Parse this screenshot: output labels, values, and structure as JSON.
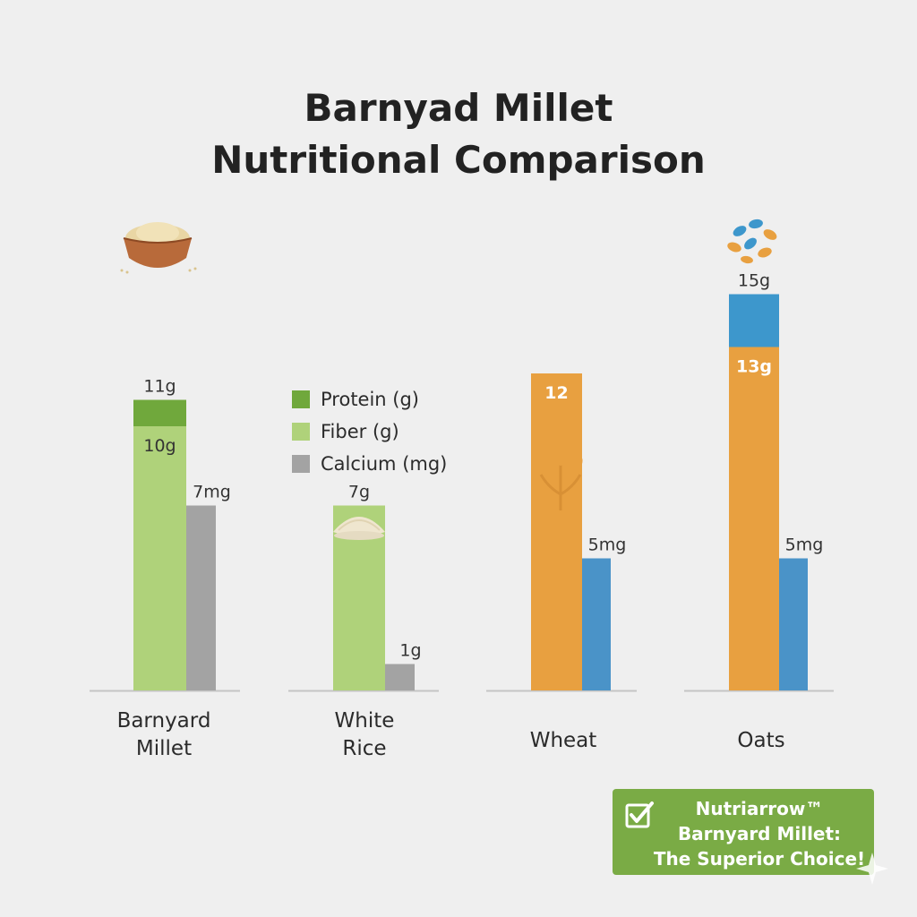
{
  "title_lines": [
    "Barnyad Millet",
    "Nutritional Comparison"
  ],
  "legend": [
    {
      "label": "Protein (g)",
      "color": "#70a83c"
    },
    {
      "label": "Fiber (g)",
      "color": "#afd27a"
    },
    {
      "label": "Calcium (mg)",
      "color": "#a3a3a3"
    }
  ],
  "cta": {
    "line1": "Nutriarrow™",
    "line2": "Barnyard Millet:",
    "line3": "The Superior Choice!",
    "color": "#7aab45"
  },
  "chart_data": {
    "type": "bar",
    "title": "Barnyad Millet Nutritional Comparison",
    "categories": [
      "Barnyard Millet",
      "White Rice",
      "Wheat",
      "Oats"
    ],
    "groups": [
      {
        "category_lines": [
          "Barnyard",
          "Millet"
        ],
        "icon": "grain-bowl-icon",
        "bars": [
          {
            "segments": [
              {
                "series": "Fiber (g)",
                "value": 10,
                "color": "#afd27a",
                "label": "10g"
              },
              {
                "series": "Protein (g)",
                "value": 11,
                "color": "#70a83c",
                "label": "11g"
              }
            ]
          },
          {
            "segments": [
              {
                "series": "Calcium (mg)",
                "value": 7,
                "color": "#a3a3a3",
                "label": "7mg"
              }
            ]
          }
        ]
      },
      {
        "category_lines": [
          "White",
          "Rice"
        ],
        "icon": "rice-pile-icon",
        "bars": [
          {
            "segments": [
              {
                "series": "Fiber (g)",
                "value": 7,
                "color": "#afd27a",
                "label": "7g"
              }
            ]
          },
          {
            "segments": [
              {
                "series": "Calcium (mg)",
                "value": 1,
                "color": "#a3a3a3",
                "label": "1g"
              }
            ]
          }
        ]
      },
      {
        "category_lines": [
          "Wheat"
        ],
        "icon": "wheat-stalk-icon",
        "bars": [
          {
            "segments": [
              {
                "series": "",
                "value": 12,
                "color": "#e8a040",
                "label": "12"
              }
            ]
          },
          {
            "segments": [
              {
                "series": "",
                "value": 5,
                "color": "#4a93c8",
                "label": "5mg"
              }
            ]
          }
        ]
      },
      {
        "category_lines": [
          "Oats"
        ],
        "icon": "oat-flakes-icon",
        "bars": [
          {
            "segments": [
              {
                "series": "",
                "value": 13,
                "color": "#e8a040",
                "label": "13g"
              },
              {
                "series": "",
                "value": 15,
                "color": "#3d97cc",
                "label": "15g"
              }
            ]
          },
          {
            "segments": [
              {
                "series": "",
                "value": 5,
                "color": "#4a93c8",
                "label": "5mg"
              }
            ]
          }
        ]
      }
    ],
    "baseline_color": "#c4c4c4"
  }
}
